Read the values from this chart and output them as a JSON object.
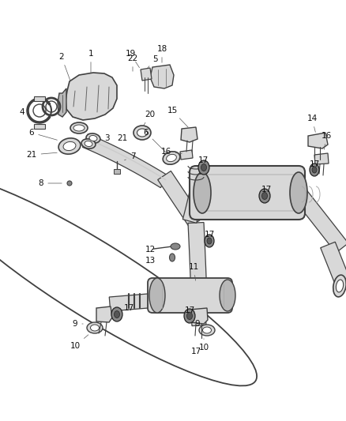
{
  "bg_color": "#ffffff",
  "fig_width": 4.38,
  "fig_height": 5.33,
  "dpi": 100,
  "line_color": "#404040",
  "fill_light": "#d8d8d8",
  "fill_mid": "#b8b8b8",
  "fill_dark": "#888888"
}
